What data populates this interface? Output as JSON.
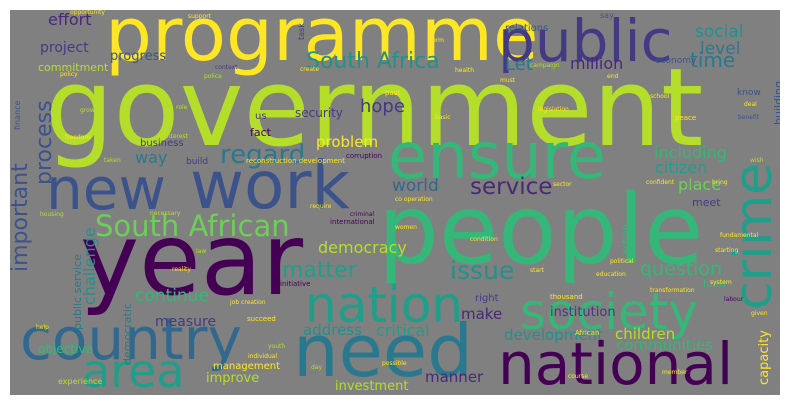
{
  "words": {
    "government": "government",
    "people": "people",
    "programme": "programme",
    "year": "year",
    "new": "new",
    "work": "work",
    "ensure": "ensure",
    "public": "public",
    "country": "country",
    "need": "need",
    "national": "national",
    "society": "society",
    "nation": "nation",
    "crime": "crime",
    "area": "area",
    "south_african_1": "South African",
    "south_african_2": "South African",
    "south_africa": "South Africa",
    "important": "important",
    "process": "process",
    "service": "service",
    "regard": "regard",
    "matter": "matter",
    "issue": "issue",
    "question": "question",
    "effort": "effort",
    "project": "project",
    "social": "social",
    "level": "level",
    "time": "time",
    "million": "million",
    "let": "Let",
    "hope": "hope",
    "world": "world",
    "place": "place",
    "citizen": "citizen",
    "including": "including",
    "democracy": "democracy",
    "challenge": "challenge",
    "continue": "continue",
    "problem": "problem",
    "way": "way",
    "make": "make",
    "critical": "critical",
    "development": "development",
    "children": "children",
    "communities": "communities",
    "institution": "institution",
    "capacity": "capacity",
    "improve": "improve",
    "investment": "investment",
    "manner": "manner",
    "measure": "measure",
    "address": "address",
    "management": "management",
    "objective": "objective",
    "public_service": "public service",
    "democratic": "democratic",
    "progress": "progress",
    "commitment": "commitment",
    "relations": "relations",
    "security": "security",
    "business": "business",
    "fact": "fact",
    "building": "building",
    "economy": "economy",
    "fund": "fund",
    "action": "action",
    "right": "right",
    "meet": "meet",
    "know": "know",
    "us": "us",
    "build": "build",
    "opportunity": "opportunity",
    "say": "say",
    "task": "task",
    "finance": "finance",
    "campaign": "campaign",
    "create": "create",
    "context": "context",
    "police": "police",
    "interest": "interest",
    "reconstruction_development": "reconstruction development",
    "corruption": "corruption",
    "legislation": "legislation",
    "basic": "basic",
    "peace": "peace",
    "deal": "deal",
    "benefit": "benefit",
    "school": "school",
    "freedom": "freedom",
    "taken": "taken",
    "necessary": "necessary",
    "co_operation": "co operation",
    "international": "international",
    "criminal": "criminal",
    "women": "women",
    "condition": "condition",
    "political": "political",
    "education": "education",
    "transformation": "transformation",
    "system": "system",
    "fundamental": "fundamental",
    "given": "given",
    "labour": "labour",
    "law": "law",
    "reality": "reality",
    "initiative": "initiative",
    "job_creation": "job creation",
    "thousand": "thousand",
    "succeed": "succeed",
    "individual": "individual",
    "possible": "possible",
    "day": "day",
    "youth": "youth",
    "help": "help",
    "experience": "experience",
    "african": "African",
    "sector": "sector",
    "start": "start",
    "end": "end",
    "wish": "wish",
    "bring": "bring",
    "confident": "confident",
    "housing": "housing",
    "require": "require",
    "must": "must",
    "health": "health",
    "past": "past",
    "growth": "growth",
    "role": "role",
    "policy": "policy",
    "support": "support",
    "starting": "starting",
    "course": "course",
    "member": "member",
    "form": "form"
  },
  "colors": {
    "background": "#808080",
    "yellow": "#fde725",
    "lime": "#b5de2b",
    "green": "#35b779",
    "teal": "#21918c",
    "blue": "#31688e",
    "indigo": "#443983",
    "purple": "#440154",
    "lightgreen": "#6ece58",
    "seagreen": "#1f9e89",
    "steel": "#2a788e",
    "navy": "#3b528b",
    "violet": "#482878"
  }
}
